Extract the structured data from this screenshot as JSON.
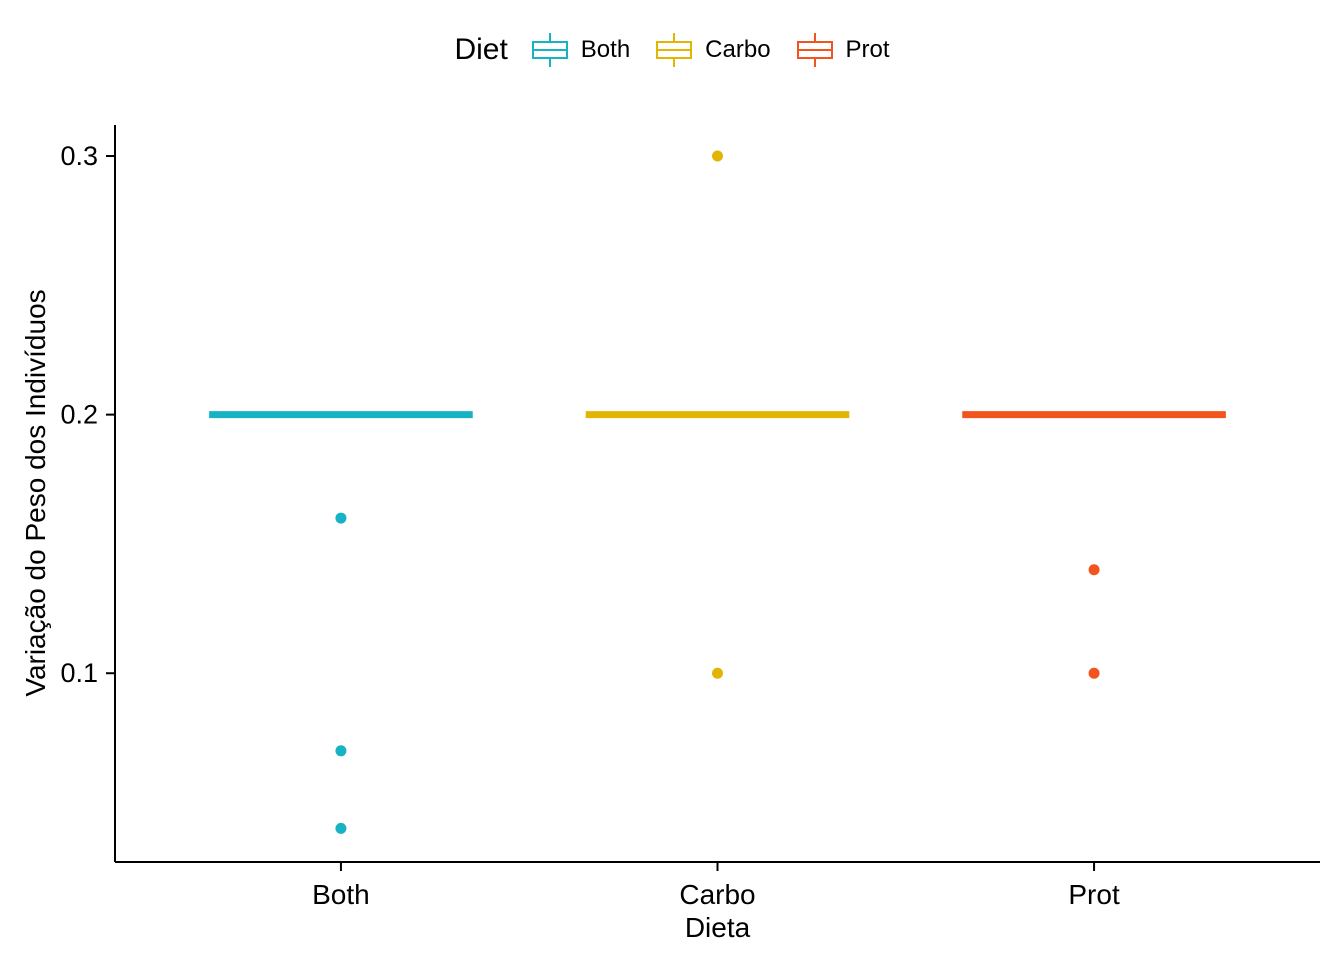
{
  "figure": {
    "background": "#ffffff"
  },
  "legend": {
    "title": "Diet",
    "position": "top",
    "entries": [
      {
        "label": "Both",
        "color": "#17b2c3"
      },
      {
        "label": "Carbo",
        "color": "#e2b505"
      },
      {
        "label": "Prot",
        "color": "#f2541d"
      }
    ]
  },
  "chart_data": {
    "type": "boxplot",
    "title": "",
    "xlabel": "Dieta",
    "ylabel": "Variação do Peso dos Indivíduos",
    "categories": [
      "Both",
      "Carbo",
      "Prot"
    ],
    "series": [
      {
        "name": "Both",
        "color": "#17b2c3",
        "whisker_low": 0.2,
        "q1": 0.2,
        "median": 0.2,
        "q3": 0.2,
        "whisker_high": 0.2,
        "outliers": [
          0.16,
          0.07,
          0.04
        ]
      },
      {
        "name": "Carbo",
        "color": "#e2b505",
        "whisker_low": 0.2,
        "q1": 0.2,
        "median": 0.2,
        "q3": 0.2,
        "whisker_high": 0.2,
        "outliers": [
          0.3,
          0.1
        ]
      },
      {
        "name": "Prot",
        "color": "#f2541d",
        "whisker_low": 0.2,
        "q1": 0.2,
        "median": 0.2,
        "q3": 0.2,
        "whisker_high": 0.2,
        "outliers": [
          0.14,
          0.1
        ]
      }
    ],
    "y_ticks": [
      0.1,
      0.2,
      0.3
    ],
    "ylim": [
      0.027,
      0.312
    ],
    "grid": false,
    "legend_position": "top",
    "axis_color": "#000000",
    "box_width_ratio": 0.7
  }
}
